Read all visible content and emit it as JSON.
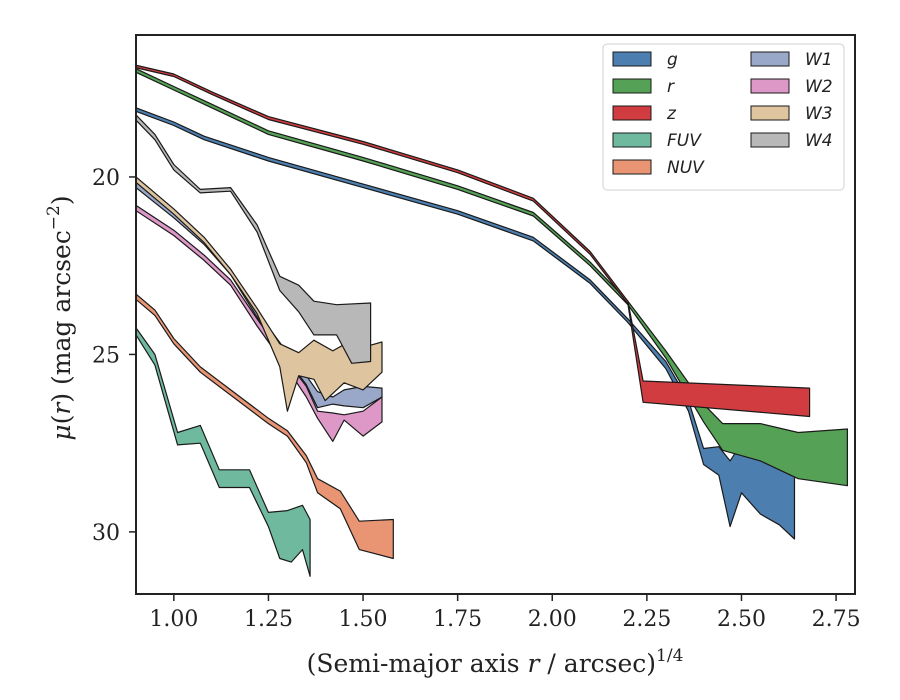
{
  "chart_data": {
    "type": "area",
    "xlabel": "(Semi-major axis r / arcsec)",
    "xlabel_var": "r",
    "xlabel_exp": "1/4",
    "ylabel_prefix": "μ(r) (mag arcsec",
    "ylabel_exp": "−2",
    "ylabel_suffix": ")",
    "xlim": [
      0.9,
      2.8
    ],
    "ylim": [
      31.75,
      16.0
    ],
    "y_inverted": true,
    "xticks": [
      1.0,
      1.25,
      1.5,
      1.75,
      2.0,
      2.25,
      2.5,
      2.75
    ],
    "xtick_labels": [
      "1.00",
      "1.25",
      "1.50",
      "1.75",
      "2.00",
      "2.25",
      "2.50",
      "2.75"
    ],
    "yticks": [
      20,
      25,
      30
    ],
    "ytick_labels": [
      "20",
      "25",
      "30"
    ],
    "legend_position": "top-right",
    "legend_columns": 2,
    "series": [
      {
        "name": "g",
        "color": "#4c7fb0",
        "upper": [
          [
            0.9,
            18.05
          ],
          [
            1.0,
            18.45
          ],
          [
            1.08,
            18.85
          ],
          [
            1.25,
            19.45
          ],
          [
            1.5,
            20.2
          ],
          [
            1.75,
            20.95
          ],
          [
            1.95,
            21.7
          ],
          [
            2.1,
            22.9
          ],
          [
            2.2,
            24.0
          ],
          [
            2.3,
            25.2
          ],
          [
            2.36,
            26.3
          ],
          [
            2.4,
            27.65
          ],
          [
            2.44,
            27.6
          ],
          [
            2.47,
            28.0
          ],
          [
            2.5,
            27.5
          ],
          [
            2.55,
            27.8
          ],
          [
            2.6,
            28.0
          ],
          [
            2.64,
            28.0
          ]
        ],
        "lower": [
          [
            0.9,
            18.15
          ],
          [
            1.0,
            18.55
          ],
          [
            1.08,
            18.95
          ],
          [
            1.25,
            19.55
          ],
          [
            1.5,
            20.3
          ],
          [
            1.75,
            21.05
          ],
          [
            1.95,
            21.8
          ],
          [
            2.1,
            23.0
          ],
          [
            2.2,
            24.1
          ],
          [
            2.3,
            25.4
          ],
          [
            2.36,
            26.6
          ],
          [
            2.4,
            28.1
          ],
          [
            2.44,
            28.4
          ],
          [
            2.47,
            29.85
          ],
          [
            2.5,
            28.9
          ],
          [
            2.55,
            29.5
          ],
          [
            2.6,
            29.8
          ],
          [
            2.64,
            30.2
          ]
        ]
      },
      {
        "name": "r",
        "color": "#55a155",
        "upper": [
          [
            0.9,
            16.95
          ],
          [
            1.0,
            17.45
          ],
          [
            1.1,
            17.95
          ],
          [
            1.25,
            18.7
          ],
          [
            1.5,
            19.45
          ],
          [
            1.75,
            20.25
          ],
          [
            1.95,
            21.0
          ],
          [
            2.1,
            22.4
          ],
          [
            2.2,
            23.5
          ],
          [
            2.3,
            24.9
          ],
          [
            2.4,
            26.4
          ],
          [
            2.45,
            26.95
          ],
          [
            2.55,
            26.95
          ],
          [
            2.65,
            27.2
          ],
          [
            2.78,
            27.1
          ]
        ],
        "lower": [
          [
            0.9,
            17.05
          ],
          [
            1.0,
            17.55
          ],
          [
            1.1,
            18.05
          ],
          [
            1.25,
            18.8
          ],
          [
            1.5,
            19.55
          ],
          [
            1.75,
            20.35
          ],
          [
            1.95,
            21.1
          ],
          [
            2.1,
            22.5
          ],
          [
            2.2,
            23.6
          ],
          [
            2.3,
            25.1
          ],
          [
            2.4,
            26.9
          ],
          [
            2.45,
            27.7
          ],
          [
            2.55,
            28.0
          ],
          [
            2.65,
            28.5
          ],
          [
            2.78,
            28.7
          ]
        ]
      },
      {
        "name": "z",
        "color": "#d03c3f",
        "upper": [
          [
            0.9,
            16.85
          ],
          [
            1.0,
            17.1
          ],
          [
            1.1,
            17.6
          ],
          [
            1.25,
            18.3
          ],
          [
            1.5,
            19.0
          ],
          [
            1.75,
            19.8
          ],
          [
            1.95,
            20.6
          ],
          [
            2.1,
            22.1
          ],
          [
            2.2,
            23.5
          ],
          [
            2.24,
            25.75
          ],
          [
            2.68,
            25.95
          ]
        ],
        "lower": [
          [
            0.9,
            16.92
          ],
          [
            1.0,
            17.17
          ],
          [
            1.1,
            17.67
          ],
          [
            1.25,
            18.38
          ],
          [
            1.5,
            19.08
          ],
          [
            1.75,
            19.88
          ],
          [
            1.95,
            20.68
          ],
          [
            2.1,
            22.18
          ],
          [
            2.2,
            23.58
          ],
          [
            2.24,
            26.35
          ],
          [
            2.68,
            26.75
          ]
        ]
      },
      {
        "name": "FUV",
        "color": "#6fba9f",
        "upper": [
          [
            0.9,
            24.25
          ],
          [
            0.95,
            25.0
          ],
          [
            1.01,
            27.2
          ],
          [
            1.07,
            27.0
          ],
          [
            1.12,
            28.25
          ],
          [
            1.2,
            28.25
          ],
          [
            1.25,
            29.45
          ],
          [
            1.3,
            29.4
          ],
          [
            1.34,
            29.25
          ],
          [
            1.36,
            29.65
          ]
        ],
        "lower": [
          [
            0.9,
            24.45
          ],
          [
            0.95,
            25.3
          ],
          [
            1.01,
            27.55
          ],
          [
            1.07,
            27.5
          ],
          [
            1.12,
            28.75
          ],
          [
            1.2,
            28.75
          ],
          [
            1.25,
            29.85
          ],
          [
            1.28,
            30.75
          ],
          [
            1.31,
            30.85
          ],
          [
            1.34,
            30.5
          ],
          [
            1.36,
            31.25
          ]
        ]
      },
      {
        "name": "NUV",
        "color": "#e99574",
        "upper": [
          [
            0.9,
            23.3
          ],
          [
            0.95,
            23.75
          ],
          [
            1.0,
            24.55
          ],
          [
            1.07,
            25.35
          ],
          [
            1.25,
            26.8
          ],
          [
            1.3,
            27.15
          ],
          [
            1.35,
            27.85
          ],
          [
            1.38,
            28.5
          ],
          [
            1.44,
            28.85
          ],
          [
            1.49,
            29.7
          ],
          [
            1.58,
            29.65
          ]
        ],
        "lower": [
          [
            0.9,
            23.45
          ],
          [
            0.95,
            23.9
          ],
          [
            1.0,
            24.7
          ],
          [
            1.07,
            25.5
          ],
          [
            1.25,
            26.95
          ],
          [
            1.3,
            27.3
          ],
          [
            1.35,
            28.05
          ],
          [
            1.38,
            28.9
          ],
          [
            1.44,
            29.35
          ],
          [
            1.49,
            30.5
          ],
          [
            1.58,
            30.75
          ]
        ]
      },
      {
        "name": "W1",
        "color": "#99a8c8",
        "upper": [
          [
            0.9,
            20.15
          ],
          [
            1.0,
            21.0
          ],
          [
            1.08,
            21.75
          ],
          [
            1.15,
            22.6
          ],
          [
            1.22,
            23.8
          ],
          [
            1.3,
            24.95
          ],
          [
            1.35,
            25.6
          ],
          [
            1.38,
            26.05
          ],
          [
            1.42,
            26.2
          ],
          [
            1.45,
            26.0
          ],
          [
            1.5,
            25.9
          ],
          [
            1.55,
            25.95
          ]
        ],
        "lower": [
          [
            0.9,
            20.3
          ],
          [
            1.0,
            21.15
          ],
          [
            1.08,
            21.9
          ],
          [
            1.15,
            22.75
          ],
          [
            1.22,
            23.95
          ],
          [
            1.3,
            25.15
          ],
          [
            1.35,
            25.85
          ],
          [
            1.38,
            26.5
          ],
          [
            1.42,
            26.4
          ],
          [
            1.45,
            26.45
          ],
          [
            1.5,
            26.5
          ],
          [
            1.55,
            26.2
          ]
        ]
      },
      {
        "name": "W2",
        "color": "#dd98c8",
        "upper": [
          [
            0.9,
            20.8
          ],
          [
            1.0,
            21.5
          ],
          [
            1.08,
            22.2
          ],
          [
            1.15,
            22.9
          ],
          [
            1.22,
            24.0
          ],
          [
            1.3,
            25.2
          ],
          [
            1.35,
            25.9
          ],
          [
            1.38,
            26.6
          ],
          [
            1.42,
            26.65
          ],
          [
            1.45,
            26.7
          ],
          [
            1.5,
            26.6
          ],
          [
            1.55,
            26.2
          ]
        ],
        "lower": [
          [
            0.9,
            20.95
          ],
          [
            1.0,
            21.65
          ],
          [
            1.08,
            22.35
          ],
          [
            1.15,
            23.05
          ],
          [
            1.22,
            24.2
          ],
          [
            1.3,
            25.4
          ],
          [
            1.35,
            26.2
          ],
          [
            1.38,
            26.8
          ],
          [
            1.42,
            27.45
          ],
          [
            1.45,
            26.85
          ],
          [
            1.5,
            27.3
          ],
          [
            1.55,
            26.9
          ]
        ]
      },
      {
        "name": "W3",
        "color": "#dfc4a0",
        "upper": [
          [
            0.9,
            20.0
          ],
          [
            1.0,
            20.9
          ],
          [
            1.08,
            21.7
          ],
          [
            1.15,
            22.6
          ],
          [
            1.22,
            23.7
          ],
          [
            1.28,
            24.7
          ],
          [
            1.33,
            24.95
          ],
          [
            1.37,
            24.6
          ],
          [
            1.42,
            24.9
          ],
          [
            1.47,
            24.6
          ],
          [
            1.5,
            24.8
          ],
          [
            1.55,
            24.65
          ]
        ],
        "lower": [
          [
            0.9,
            20.15
          ],
          [
            1.0,
            21.05
          ],
          [
            1.08,
            21.85
          ],
          [
            1.15,
            22.75
          ],
          [
            1.22,
            23.85
          ],
          [
            1.28,
            25.35
          ],
          [
            1.3,
            26.6
          ],
          [
            1.33,
            25.6
          ],
          [
            1.37,
            25.7
          ],
          [
            1.4,
            26.3
          ],
          [
            1.45,
            25.8
          ],
          [
            1.5,
            26.0
          ],
          [
            1.55,
            25.5
          ]
        ]
      },
      {
        "name": "W4",
        "color": "#b8b8b8",
        "upper": [
          [
            0.9,
            18.25
          ],
          [
            0.95,
            18.8
          ],
          [
            1.0,
            19.65
          ],
          [
            1.07,
            20.35
          ],
          [
            1.15,
            20.3
          ],
          [
            1.22,
            21.35
          ],
          [
            1.28,
            22.8
          ],
          [
            1.33,
            23.05
          ],
          [
            1.37,
            23.5
          ],
          [
            1.43,
            23.6
          ],
          [
            1.52,
            23.55
          ]
        ],
        "lower": [
          [
            0.9,
            18.4
          ],
          [
            0.95,
            18.95
          ],
          [
            1.0,
            19.8
          ],
          [
            1.07,
            20.45
          ],
          [
            1.15,
            20.4
          ],
          [
            1.22,
            21.55
          ],
          [
            1.28,
            23.2
          ],
          [
            1.33,
            23.8
          ],
          [
            1.37,
            24.45
          ],
          [
            1.43,
            24.45
          ],
          [
            1.47,
            25.25
          ],
          [
            1.52,
            25.2
          ]
        ]
      }
    ]
  }
}
